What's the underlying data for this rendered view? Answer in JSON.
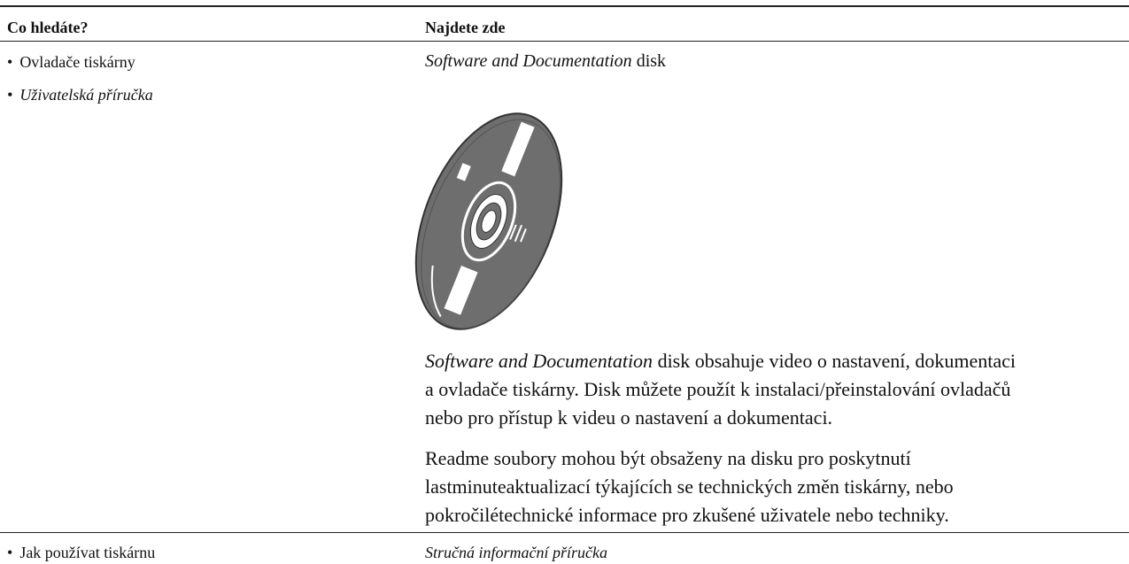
{
  "table": {
    "header": [
      "Co hledáte?",
      "Najdete zde"
    ],
    "rows": [
      {
        "items": [
          "Ovladače tiskárny",
          "Uživatelská příručka"
        ],
        "source_italic": "Software and Documentation",
        "source_rest": "disk",
        "paragraph1": {
          "italic": "Software and Documentation",
          "lines": [
            "disk obsahuje video o nastavení, dokumentaci",
            "a ovladače tiskárny. Disk můžete použít k instalaci/přeinstalování ovladačů",
            "nebo pro přístup k videu o nastavení a dokumentaci."
          ]
        },
        "paragraph2": {
          "lines": [
            "Readme soubory mohou být obsaženy na disku pro poskytnutí",
            "lastminuteaktualizací týkajících se technických změn tiskárny, nebo",
            "pokročilétechnické informace pro zkušené uživatele nebo techniky."
          ]
        }
      },
      {
        "items": [
          "Jak používat tiskárnu"
        ],
        "source_italic": "Stručná informační příručka"
      }
    ]
  }
}
